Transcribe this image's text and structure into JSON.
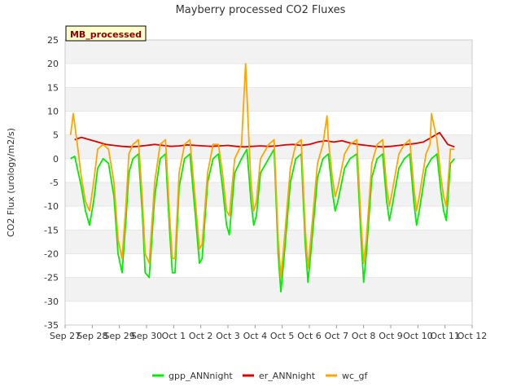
{
  "chart_data": {
    "type": "line",
    "title": "Mayberry processed CO2 Fluxes",
    "badge": "MB_processed",
    "xlabel": "",
    "ylabel": "CO2 Flux (urology/m2/s)",
    "ylim": [
      -35,
      25
    ],
    "yticks": [
      25,
      20,
      15,
      10,
      5,
      0,
      -5,
      -10,
      -15,
      -20,
      -25,
      -30,
      -35
    ],
    "xlim": [
      0,
      15
    ],
    "xticks": [
      {
        "x": 0,
        "label": "Sep 27"
      },
      {
        "x": 1,
        "label": "Sep 28"
      },
      {
        "x": 2,
        "label": "Sep 29"
      },
      {
        "x": 3,
        "label": "Sep 30"
      },
      {
        "x": 4,
        "label": "Oct 1"
      },
      {
        "x": 5,
        "label": "Oct 2"
      },
      {
        "x": 6,
        "label": "Oct 3"
      },
      {
        "x": 7,
        "label": "Oct 4"
      },
      {
        "x": 8,
        "label": "Oct 5"
      },
      {
        "x": 9,
        "label": "Oct 6"
      },
      {
        "x": 10,
        "label": "Oct 7"
      },
      {
        "x": 11,
        "label": "Oct 8"
      },
      {
        "x": 12,
        "label": "Oct 9"
      },
      {
        "x": 13,
        "label": "Oct 10"
      },
      {
        "x": 14,
        "label": "Oct 11"
      },
      {
        "x": 15,
        "label": "Oct 12"
      }
    ],
    "grid": "horizontal bands",
    "legend_position": "bottom-center",
    "series": [
      {
        "name": "gpp_ANNnight",
        "color": "#00ee00",
        "x": [
          0.2,
          0.35,
          0.45,
          0.6,
          0.75,
          0.9,
          1.05,
          1.2,
          1.4,
          1.6,
          1.8,
          1.95,
          2.1,
          2.25,
          2.35,
          2.5,
          2.7,
          2.85,
          2.95,
          3.1,
          3.3,
          3.5,
          3.7,
          3.85,
          3.95,
          4.05,
          4.2,
          4.4,
          4.6,
          4.8,
          4.95,
          5.05,
          5.25,
          5.45,
          5.65,
          5.8,
          5.95,
          6.05,
          6.25,
          6.5,
          6.7,
          6.85,
          6.95,
          7.05,
          7.2,
          7.5,
          7.7,
          7.85,
          7.95,
          8.05,
          8.3,
          8.5,
          8.7,
          8.85,
          8.95,
          9.05,
          9.3,
          9.5,
          9.7,
          9.85,
          9.95,
          10.05,
          10.3,
          10.5,
          10.75,
          10.9,
          11.0,
          11.1,
          11.3,
          11.5,
          11.7,
          11.85,
          11.95,
          12.05,
          12.3,
          12.5,
          12.7,
          12.85,
          12.95,
          13.05,
          13.3,
          13.5,
          13.7,
          13.85,
          13.95,
          14.05,
          14.2,
          14.35
        ],
        "y": [
          0,
          0.5,
          -2,
          -6,
          -11,
          -14,
          -9,
          -2,
          0,
          -1,
          -8,
          -20,
          -24,
          -12,
          -3,
          0,
          1,
          -12,
          -24,
          -25,
          -8,
          0,
          1,
          -15,
          -24,
          -24,
          -6,
          0,
          1,
          -12,
          -22,
          -21,
          -5,
          0,
          1,
          -6,
          -14,
          -16,
          -3,
          0,
          2,
          -9,
          -14,
          -12,
          -3,
          0,
          2,
          -20,
          -28,
          -22,
          -5,
          0,
          1,
          -18,
          -26,
          -20,
          -4,
          0,
          1,
          -7,
          -11,
          -9,
          -2,
          0,
          1,
          -16,
          -26,
          -20,
          -4,
          0,
          1,
          -9,
          -13,
          -10,
          -2,
          0,
          1,
          -9,
          -14,
          -11,
          -2,
          0,
          1,
          -7,
          -11,
          -13,
          -1,
          0
        ]
      },
      {
        "name": "er_ANNnight",
        "color": "#dd0000",
        "x": [
          0.35,
          0.6,
          0.9,
          1.2,
          1.5,
          1.8,
          2.1,
          2.4,
          2.7,
          3.0,
          3.3,
          3.6,
          3.9,
          4.2,
          4.5,
          4.8,
          5.1,
          5.4,
          5.7,
          6.0,
          6.3,
          6.6,
          6.9,
          7.2,
          7.5,
          7.8,
          8.1,
          8.4,
          8.7,
          9.0,
          9.3,
          9.6,
          9.9,
          10.2,
          10.5,
          10.8,
          11.1,
          11.4,
          11.7,
          12.0,
          12.3,
          12.6,
          12.9,
          13.2,
          13.5,
          13.8,
          14.1,
          14.35
        ],
        "y": [
          4,
          4.5,
          4,
          3.5,
          3,
          2.8,
          2.6,
          2.5,
          2.6,
          2.8,
          3,
          2.8,
          2.6,
          2.7,
          2.9,
          2.8,
          2.7,
          2.6,
          2.7,
          2.8,
          2.6,
          2.5,
          2.6,
          2.7,
          2.6,
          2.7,
          2.9,
          3,
          2.8,
          3,
          3.5,
          3.8,
          3.5,
          3.8,
          3.3,
          3,
          2.8,
          2.6,
          2.5,
          2.6,
          2.8,
          3,
          3.2,
          3.5,
          4.5,
          5.5,
          3,
          2.5
        ]
      },
      {
        "name": "wc_gf",
        "color": "#ffa500",
        "x": [
          0.2,
          0.3,
          0.45,
          0.6,
          0.75,
          0.9,
          1.05,
          1.2,
          1.4,
          1.6,
          1.8,
          1.95,
          2.1,
          2.25,
          2.35,
          2.5,
          2.7,
          2.85,
          2.95,
          3.1,
          3.3,
          3.5,
          3.7,
          3.85,
          3.95,
          4.05,
          4.2,
          4.4,
          4.6,
          4.8,
          4.95,
          5.05,
          5.25,
          5.45,
          5.65,
          5.8,
          5.95,
          6.05,
          6.25,
          6.5,
          6.65,
          6.78,
          6.85,
          6.95,
          7.05,
          7.2,
          7.5,
          7.7,
          7.85,
          7.95,
          8.05,
          8.3,
          8.5,
          8.7,
          8.85,
          8.95,
          9.05,
          9.3,
          9.5,
          9.65,
          9.7,
          9.85,
          9.95,
          10.05,
          10.3,
          10.5,
          10.75,
          10.9,
          11.0,
          11.1,
          11.3,
          11.5,
          11.7,
          11.85,
          11.95,
          12.05,
          12.3,
          12.5,
          12.7,
          12.85,
          12.95,
          13.05,
          13.3,
          13.45,
          13.5,
          13.7,
          13.85,
          13.95,
          14.05,
          14.2,
          14.35
        ],
        "y": [
          5,
          9.5,
          3,
          -4,
          -9,
          -11,
          -5,
          2,
          3,
          2,
          -5,
          -17,
          -21,
          -9,
          1,
          3,
          4,
          -9,
          -20,
          -22,
          -5,
          3,
          4,
          -12,
          -21,
          -21,
          -3,
          3,
          4,
          -9,
          -19,
          -18,
          -3,
          3,
          3,
          -3,
          -11,
          -12,
          0,
          3,
          20,
          3,
          -5,
          -11,
          -9,
          0,
          3,
          4,
          -17,
          -25,
          -19,
          -2,
          3,
          4,
          -15,
          -23,
          -17,
          -1,
          3,
          9,
          4,
          -4,
          -8,
          -6,
          1,
          3,
          4,
          -13,
          -22,
          -17,
          -1,
          3,
          4,
          -6,
          -10,
          -7,
          1,
          3,
          4,
          -6,
          -11,
          -8,
          1,
          3,
          9.5,
          4,
          -4,
          -8,
          -10,
          2,
          2
        ]
      }
    ]
  }
}
